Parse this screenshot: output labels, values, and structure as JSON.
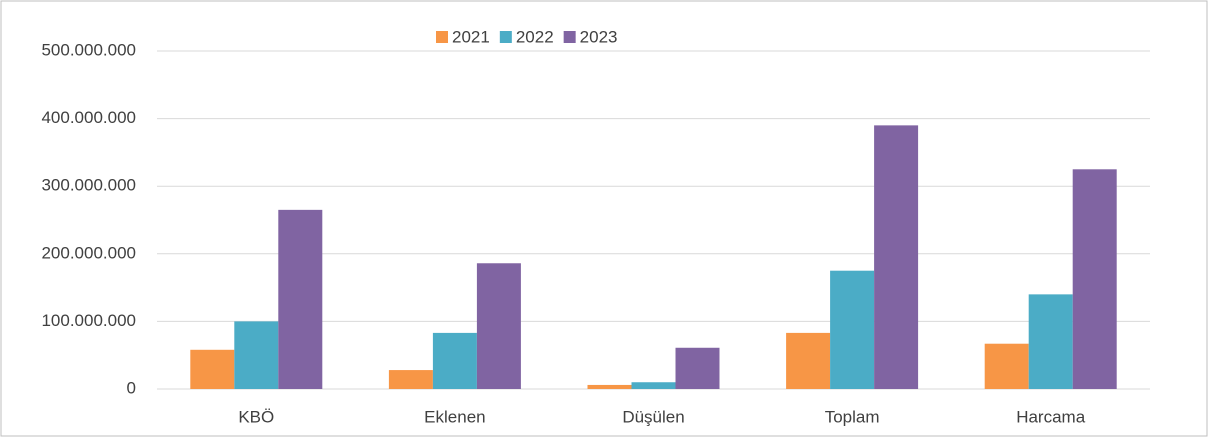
{
  "chart_data": {
    "type": "bar",
    "categories": [
      "KBÖ",
      "Eklenen",
      "Düşülen",
      "Toplam",
      "Harcama"
    ],
    "series": [
      {
        "name": "2021",
        "color": "#f79646",
        "values": [
          58000000,
          28000000,
          6000000,
          83000000,
          67000000
        ]
      },
      {
        "name": "2022",
        "color": "#4bacc6",
        "values": [
          100000000,
          83000000,
          10000000,
          175000000,
          140000000
        ]
      },
      {
        "name": "2023",
        "color": "#8064a2",
        "values": [
          265000000,
          186000000,
          61000000,
          390000000,
          325000000
        ]
      }
    ],
    "ylim": [
      0,
      500000000
    ],
    "yticks": [
      0,
      {
        "value": 100000000,
        "label": "100.000.000"
      },
      {
        "value": 200000000,
        "label": "200.000.000"
      },
      {
        "value": 300000000,
        "label": "300.000.000"
      },
      {
        "value": 400000000,
        "label": "400.000.000"
      },
      {
        "value": 500000000,
        "label": "500.000.000"
      }
    ],
    "grid": true,
    "legend": "top"
  }
}
